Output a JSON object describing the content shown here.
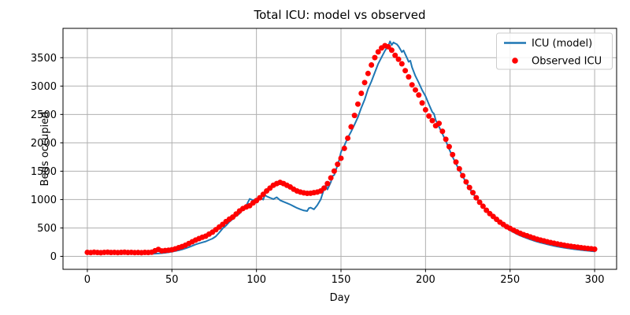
{
  "chart_data": {
    "type": "line",
    "title": "Total ICU: model vs observed",
    "xlabel": "Day",
    "ylabel": "Beds occupied",
    "xlim": [
      -14.4,
      313.0
    ],
    "ylim": [
      -229,
      4017
    ],
    "xticks": [
      0,
      50,
      100,
      150,
      200,
      250,
      300
    ],
    "yticks": [
      0,
      500,
      1000,
      1500,
      2000,
      2500,
      3000,
      3500
    ],
    "grid": true,
    "grid_color": "#b0b0b0",
    "legend_position": "upper right",
    "legend_border_color": "#cccccc",
    "series": [
      {
        "name": "ICU (model)",
        "type": "line",
        "color": "#1f77b4",
        "linewidth": 2,
        "points": [
          [
            0,
            55
          ],
          [
            2,
            50
          ],
          [
            4,
            52
          ],
          [
            6,
            48
          ],
          [
            8,
            50
          ],
          [
            10,
            47
          ],
          [
            12,
            49
          ],
          [
            14,
            45
          ],
          [
            16,
            47
          ],
          [
            18,
            44
          ],
          [
            20,
            46
          ],
          [
            22,
            43
          ],
          [
            24,
            45
          ],
          [
            26,
            42
          ],
          [
            28,
            44
          ],
          [
            30,
            42
          ],
          [
            32,
            43
          ],
          [
            34,
            41
          ],
          [
            36,
            43
          ],
          [
            38,
            44
          ],
          [
            40,
            46
          ],
          [
            42,
            50
          ],
          [
            44,
            56
          ],
          [
            46,
            63
          ],
          [
            48,
            71
          ],
          [
            50,
            81
          ],
          [
            52,
            93
          ],
          [
            54,
            106
          ],
          [
            56,
            121
          ],
          [
            58,
            139
          ],
          [
            60,
            160
          ],
          [
            62,
            184
          ],
          [
            64,
            209
          ],
          [
            66,
            228
          ],
          [
            68,
            245
          ],
          [
            70,
            262
          ],
          [
            72,
            288
          ],
          [
            74,
            312
          ],
          [
            76,
            352
          ],
          [
            78,
            418
          ],
          [
            80,
            490
          ],
          [
            82,
            542
          ],
          [
            84,
            608
          ],
          [
            86,
            658
          ],
          [
            88,
            712
          ],
          [
            90,
            752
          ],
          [
            92,
            828
          ],
          [
            94,
            896
          ],
          [
            96,
            1012
          ],
          [
            98,
            988
          ],
          [
            100,
            1010
          ],
          [
            102,
            1042
          ],
          [
            104,
            998
          ],
          [
            105,
            1082
          ],
          [
            106,
            1058
          ],
          [
            108,
            1032
          ],
          [
            110,
            1008
          ],
          [
            112,
            1040
          ],
          [
            114,
            988
          ],
          [
            116,
            962
          ],
          [
            118,
            938
          ],
          [
            120,
            912
          ],
          [
            122,
            882
          ],
          [
            124,
            852
          ],
          [
            126,
            828
          ],
          [
            128,
            808
          ],
          [
            130,
            798
          ],
          [
            131,
            848
          ],
          [
            132,
            858
          ],
          [
            134,
            828
          ],
          [
            136,
            902
          ],
          [
            138,
            1002
          ],
          [
            140,
            1188
          ],
          [
            141,
            1252
          ],
          [
            142,
            1178
          ],
          [
            144,
            1308
          ],
          [
            145,
            1415
          ],
          [
            146,
            1432
          ],
          [
            148,
            1608
          ],
          [
            149,
            1705
          ],
          [
            150,
            1838
          ],
          [
            152,
            1952
          ],
          [
            154,
            2088
          ],
          [
            156,
            2198
          ],
          [
            158,
            2322
          ],
          [
            160,
            2452
          ],
          [
            162,
            2618
          ],
          [
            164,
            2762
          ],
          [
            166,
            2948
          ],
          [
            168,
            3082
          ],
          [
            170,
            3238
          ],
          [
            172,
            3392
          ],
          [
            174,
            3508
          ],
          [
            176,
            3622
          ],
          [
            178,
            3712
          ],
          [
            179,
            3788
          ],
          [
            180,
            3722
          ],
          [
            181,
            3768
          ],
          [
            182,
            3752
          ],
          [
            183,
            3738
          ],
          [
            184,
            3702
          ],
          [
            185,
            3652
          ],
          [
            186,
            3598
          ],
          [
            187,
            3628
          ],
          [
            188,
            3562
          ],
          [
            189,
            3498
          ],
          [
            190,
            3428
          ],
          [
            191,
            3448
          ],
          [
            192,
            3332
          ],
          [
            194,
            3178
          ],
          [
            196,
            3058
          ],
          [
            198,
            2928
          ],
          [
            200,
            2822
          ],
          [
            202,
            2678
          ],
          [
            204,
            2542
          ],
          [
            205,
            2512
          ],
          [
            206,
            2402
          ],
          [
            208,
            2282
          ],
          [
            210,
            2158
          ],
          [
            212,
            2032
          ],
          [
            214,
            1888
          ],
          [
            216,
            1752
          ],
          [
            218,
            1632
          ],
          [
            220,
            1518
          ],
          [
            222,
            1408
          ],
          [
            224,
            1302
          ],
          [
            226,
            1198
          ],
          [
            228,
            1108
          ],
          [
            230,
            1028
          ],
          [
            232,
            948
          ],
          [
            234,
            878
          ],
          [
            236,
            808
          ],
          [
            238,
            745
          ],
          [
            240,
            685
          ],
          [
            242,
            630
          ],
          [
            244,
            580
          ],
          [
            246,
            535
          ],
          [
            248,
            495
          ],
          [
            250,
            458
          ],
          [
            252,
            425
          ],
          [
            254,
            393
          ],
          [
            256,
            365
          ],
          [
            258,
            340
          ],
          [
            260,
            318
          ],
          [
            262,
            296
          ],
          [
            264,
            276
          ],
          [
            266,
            258
          ],
          [
            268,
            241
          ],
          [
            270,
            226
          ],
          [
            272,
            211
          ],
          [
            274,
            197
          ],
          [
            276,
            184
          ],
          [
            278,
            172
          ],
          [
            280,
            161
          ],
          [
            282,
            151
          ],
          [
            284,
            142
          ],
          [
            286,
            133
          ],
          [
            288,
            125
          ],
          [
            290,
            118
          ],
          [
            292,
            111
          ],
          [
            294,
            104
          ],
          [
            296,
            98
          ],
          [
            298,
            92
          ],
          [
            300,
            86
          ]
        ]
      },
      {
        "name": "Observed ICU",
        "type": "scatter",
        "color": "#ff0000",
        "markersize": 7,
        "points": [
          [
            0,
            70
          ],
          [
            2,
            66
          ],
          [
            4,
            72
          ],
          [
            6,
            68
          ],
          [
            8,
            64
          ],
          [
            10,
            70
          ],
          [
            12,
            73
          ],
          [
            14,
            67
          ],
          [
            16,
            70
          ],
          [
            18,
            65
          ],
          [
            20,
            69
          ],
          [
            22,
            72
          ],
          [
            24,
            67
          ],
          [
            26,
            70
          ],
          [
            28,
            65
          ],
          [
            30,
            67
          ],
          [
            32,
            64
          ],
          [
            34,
            69
          ],
          [
            36,
            67
          ],
          [
            38,
            72
          ],
          [
            40,
            98
          ],
          [
            42,
            122
          ],
          [
            44,
            96
          ],
          [
            46,
            102
          ],
          [
            48,
            108
          ],
          [
            50,
            116
          ],
          [
            52,
            132
          ],
          [
            54,
            152
          ],
          [
            56,
            172
          ],
          [
            58,
            196
          ],
          [
            60,
            226
          ],
          [
            62,
            256
          ],
          [
            64,
            286
          ],
          [
            66,
            312
          ],
          [
            68,
            336
          ],
          [
            70,
            356
          ],
          [
            72,
            392
          ],
          [
            74,
            426
          ],
          [
            76,
            470
          ],
          [
            78,
            516
          ],
          [
            80,
            562
          ],
          [
            82,
            612
          ],
          [
            84,
            656
          ],
          [
            86,
            692
          ],
          [
            88,
            746
          ],
          [
            90,
            800
          ],
          [
            92,
            842
          ],
          [
            94,
            870
          ],
          [
            96,
            892
          ],
          [
            98,
            942
          ],
          [
            100,
            982
          ],
          [
            102,
            1032
          ],
          [
            104,
            1092
          ],
          [
            106,
            1152
          ],
          [
            108,
            1202
          ],
          [
            110,
            1252
          ],
          [
            112,
            1282
          ],
          [
            114,
            1302
          ],
          [
            116,
            1282
          ],
          [
            118,
            1252
          ],
          [
            120,
            1222
          ],
          [
            122,
            1182
          ],
          [
            124,
            1152
          ],
          [
            126,
            1132
          ],
          [
            128,
            1118
          ],
          [
            130,
            1110
          ],
          [
            132,
            1112
          ],
          [
            134,
            1122
          ],
          [
            136,
            1132
          ],
          [
            138,
            1152
          ],
          [
            140,
            1202
          ],
          [
            142,
            1282
          ],
          [
            144,
            1382
          ],
          [
            146,
            1502
          ],
          [
            148,
            1622
          ],
          [
            150,
            1728
          ],
          [
            152,
            1902
          ],
          [
            154,
            2082
          ],
          [
            156,
            2282
          ],
          [
            158,
            2482
          ],
          [
            160,
            2682
          ],
          [
            162,
            2872
          ],
          [
            164,
            3062
          ],
          [
            166,
            3222
          ],
          [
            168,
            3372
          ],
          [
            170,
            3502
          ],
          [
            172,
            3602
          ],
          [
            174,
            3672
          ],
          [
            176,
            3712
          ],
          [
            178,
            3692
          ],
          [
            180,
            3632
          ],
          [
            182,
            3542
          ],
          [
            184,
            3472
          ],
          [
            186,
            3392
          ],
          [
            188,
            3272
          ],
          [
            190,
            3162
          ],
          [
            192,
            3022
          ],
          [
            194,
            2932
          ],
          [
            196,
            2842
          ],
          [
            198,
            2702
          ],
          [
            200,
            2582
          ],
          [
            202,
            2472
          ],
          [
            204,
            2392
          ],
          [
            206,
            2302
          ],
          [
            208,
            2342
          ],
          [
            210,
            2202
          ],
          [
            212,
            2062
          ],
          [
            214,
            1932
          ],
          [
            216,
            1792
          ],
          [
            218,
            1662
          ],
          [
            220,
            1542
          ],
          [
            222,
            1422
          ],
          [
            224,
            1312
          ],
          [
            226,
            1212
          ],
          [
            228,
            1122
          ],
          [
            230,
            1032
          ],
          [
            232,
            952
          ],
          [
            234,
            882
          ],
          [
            236,
            812
          ],
          [
            238,
            752
          ],
          [
            240,
            702
          ],
          [
            242,
            652
          ],
          [
            244,
            602
          ],
          [
            246,
            562
          ],
          [
            248,
            522
          ],
          [
            250,
            492
          ],
          [
            252,
            462
          ],
          [
            254,
            432
          ],
          [
            256,
            406
          ],
          [
            258,
            382
          ],
          [
            260,
            362
          ],
          [
            262,
            342
          ],
          [
            264,
            322
          ],
          [
            266,
            302
          ],
          [
            268,
            286
          ],
          [
            270,
            272
          ],
          [
            272,
            256
          ],
          [
            274,
            242
          ],
          [
            276,
            230
          ],
          [
            278,
            218
          ],
          [
            280,
            206
          ],
          [
            282,
            196
          ],
          [
            284,
            186
          ],
          [
            286,
            177
          ],
          [
            288,
            169
          ],
          [
            290,
            161
          ],
          [
            292,
            153
          ],
          [
            294,
            146
          ],
          [
            296,
            139
          ],
          [
            298,
            133
          ],
          [
            300,
            127
          ]
        ]
      }
    ]
  }
}
